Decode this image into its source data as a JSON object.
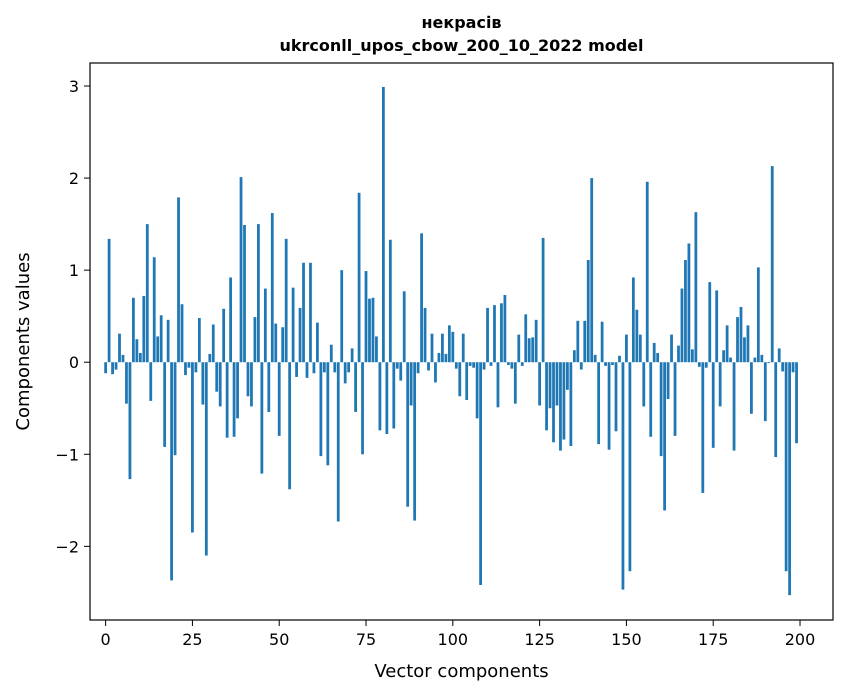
{
  "chart_data": {
    "type": "bar",
    "title_line1": "некрасів",
    "title_line2": "ukrconll_upos_cbow_200_10_2022 model",
    "xlabel": "Vector components",
    "ylabel": "Components values",
    "xlim": [
      -4.5,
      209.5
    ],
    "ylim": [
      -2.8,
      3.25
    ],
    "xticks": [
      0,
      25,
      50,
      75,
      100,
      125,
      150,
      175,
      200
    ],
    "yticks": [
      -2,
      -1,
      0,
      1,
      2,
      3
    ],
    "ytick_labels": [
      "−2",
      "−1",
      "0",
      "1",
      "2",
      "3"
    ],
    "grid": false,
    "bar_color": "#1f77b4",
    "values": [
      -0.12,
      1.34,
      -0.13,
      -0.08,
      0.31,
      0.08,
      -0.45,
      -1.27,
      0.7,
      0.25,
      0.1,
      0.72,
      1.5,
      -0.42,
      1.14,
      0.28,
      0.51,
      -0.92,
      0.46,
      -2.37,
      -1.01,
      1.79,
      0.63,
      -0.14,
      -0.06,
      -1.85,
      -0.11,
      0.48,
      -0.46,
      -2.1,
      0.09,
      0.41,
      -0.32,
      -0.48,
      0.58,
      -0.82,
      0.92,
      -0.81,
      -0.61,
      2.01,
      1.49,
      -0.37,
      -0.48,
      0.49,
      1.5,
      -1.21,
      0.8,
      -0.54,
      1.62,
      0.42,
      -0.8,
      0.38,
      1.34,
      -1.38,
      0.81,
      -0.16,
      0.59,
      1.08,
      -0.17,
      1.08,
      -0.12,
      0.43,
      -1.02,
      -0.11,
      -1.12,
      0.19,
      -0.11,
      -1.73,
      1.0,
      -0.23,
      -0.11,
      0.15,
      -0.54,
      1.84,
      -1.0,
      0.99,
      0.69,
      0.7,
      0.28,
      -0.74,
      2.99,
      -0.78,
      1.33,
      -0.72,
      -0.07,
      -0.2,
      0.77,
      -1.57,
      -0.47,
      -1.72,
      -0.12,
      1.4,
      0.59,
      -0.09,
      0.31,
      -0.22,
      0.1,
      0.31,
      0.09,
      0.4,
      0.33,
      -0.07,
      -0.37,
      0.31,
      -0.41,
      -0.04,
      -0.06,
      -0.61,
      -2.42,
      -0.08,
      0.59,
      -0.04,
      0.62,
      -0.49,
      0.64,
      0.73,
      -0.03,
      -0.07,
      -0.45,
      0.3,
      -0.04,
      0.52,
      0.26,
      0.27,
      0.46,
      -0.47,
      1.35,
      -0.74,
      -0.5,
      -0.87,
      -0.47,
      -0.96,
      -0.84,
      -0.3,
      -0.91,
      0.13,
      0.45,
      -0.08,
      0.45,
      1.11,
      2.0,
      0.08,
      -0.89,
      0.44,
      -0.04,
      -0.95,
      -0.03,
      -0.75,
      0.07,
      -2.47,
      0.3,
      -2.27,
      0.92,
      0.57,
      0.3,
      -0.48,
      1.96,
      -0.81,
      0.21,
      0.1,
      -1.02,
      -1.61,
      -0.4,
      0.3,
      -0.8,
      0.18,
      0.8,
      1.11,
      1.29,
      0.14,
      1.63,
      -0.05,
      -1.42,
      -0.06,
      0.87,
      -0.93,
      0.78,
      -0.48,
      0.13,
      0.4,
      0.05,
      -0.96,
      0.49,
      0.6,
      0.27,
      0.4,
      -0.56,
      0.05,
      1.03,
      0.08,
      -0.64,
      -0.01,
      2.13,
      -1.03,
      0.15,
      -0.1,
      -2.27,
      -2.53,
      -0.11,
      -0.88
    ]
  }
}
